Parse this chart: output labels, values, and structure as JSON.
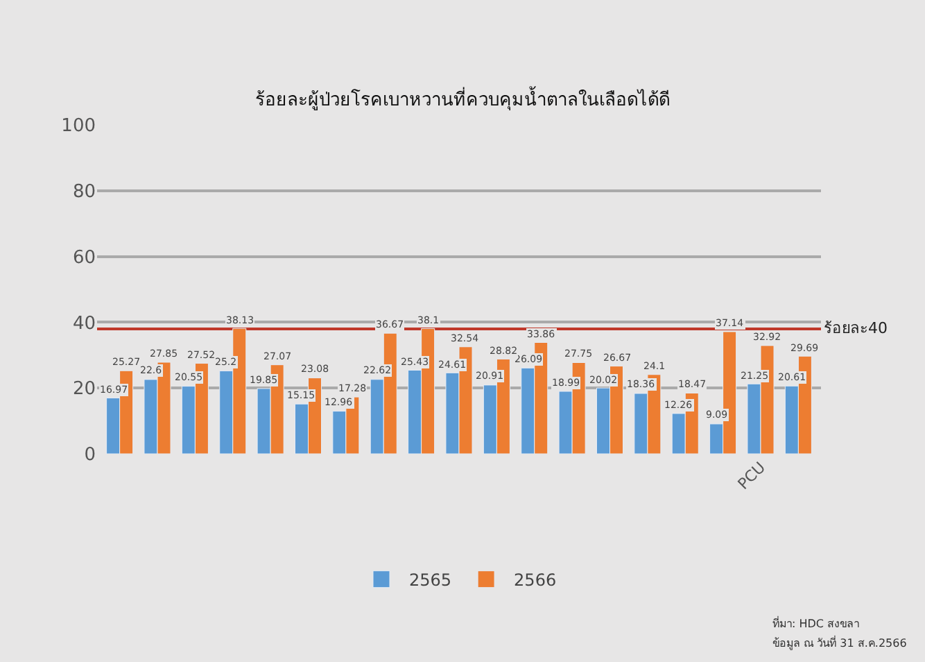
{
  "chart_data": {
    "type": "bar",
    "title": "ร้อยละผู้ป่วยโรคเบาหวานที่ควบคุมน้ำตาลในเลือดได้ดี",
    "categories": [
      null,
      null,
      null,
      null,
      null,
      null,
      null,
      null,
      null,
      null,
      null,
      null,
      null,
      null,
      null,
      null,
      null,
      "PCU",
      null
    ],
    "series": [
      {
        "name": "2565",
        "color": "#5b9bd5",
        "values": [
          16.97,
          22.6,
          20.55,
          25.2,
          19.85,
          15.15,
          12.96,
          22.62,
          25.43,
          24.61,
          20.91,
          26.09,
          18.99,
          20.02,
          18.36,
          12.26,
          9.09,
          21.25,
          20.61
        ]
      },
      {
        "name": "2566",
        "color": "#ed7d31",
        "values": [
          25.27,
          27.85,
          27.52,
          38.13,
          27.07,
          23.08,
          17.28,
          36.67,
          38.1,
          32.54,
          28.82,
          33.86,
          27.75,
          26.67,
          24.1,
          18.47,
          37.14,
          32.92,
          29.69
        ]
      }
    ],
    "ylim": [
      0,
      100
    ],
    "yticks": [
      0,
      20,
      40,
      60,
      80,
      100
    ],
    "grid": "y",
    "legend": "bottom",
    "data_labels": true,
    "ref_lines": [
      {
        "axis": "y",
        "value": 38,
        "label": "ร้อยละ40",
        "color": "#c0392b"
      }
    ],
    "annotations": [
      "ที่มา: HDC สงขลา",
      "ข้อมูล ณ วันที่ 31 ส.ค.2566"
    ]
  }
}
